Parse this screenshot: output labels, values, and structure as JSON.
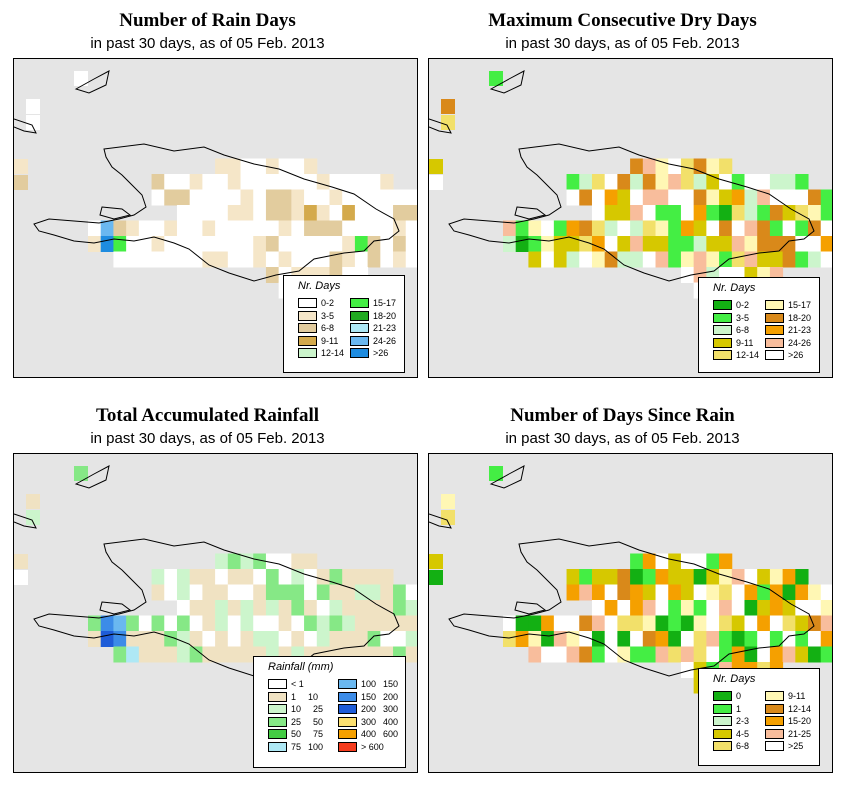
{
  "panels": [
    {
      "title": "Number of Rain Days",
      "subtitle": "in past 30 days, as of  05 Feb. 2013",
      "legend": {
        "title": "Nr. Days",
        "items": [
          {
            "label": "0-2",
            "color": "#ffffff"
          },
          {
            "label": "3-5",
            "color": "#f5e6c8"
          },
          {
            "label": "6-8",
            "color": "#e2cc9e"
          },
          {
            "label": "9-11",
            "color": "#d4aa4c"
          },
          {
            "label": "12-14",
            "color": "#ccf5cc"
          },
          {
            "label": "15-17",
            "color": "#44ee44"
          },
          {
            "label": "18-20",
            "color": "#22aa22"
          },
          {
            "label": "21-23",
            "color": "#aee8f5"
          },
          {
            "label": "24-26",
            "color": "#6ab8f0"
          },
          {
            "label": ">26",
            "color": "#1e8ce0"
          }
        ]
      }
    },
    {
      "title": "Maximum Consecutive Dry Days",
      "subtitle": "in past 30 days, as of  05 Feb. 2013",
      "legend": {
        "title": "Nr. Days",
        "items": [
          {
            "label": "0-2",
            "color": "#13b013"
          },
          {
            "label": "3-5",
            "color": "#44ee44"
          },
          {
            "label": "6-8",
            "color": "#ccf5cc"
          },
          {
            "label": "9-11",
            "color": "#d6c800"
          },
          {
            "label": "12-14",
            "color": "#f2e06a"
          },
          {
            "label": "15-17",
            "color": "#fff7b4"
          },
          {
            "label": "18-20",
            "color": "#d9891a"
          },
          {
            "label": "21-23",
            "color": "#f5a000"
          },
          {
            "label": "24-26",
            "color": "#f8bd9c"
          },
          {
            "label": ">26",
            "color": "#ffffff"
          }
        ]
      }
    },
    {
      "title": "Total Accumulated Rainfall",
      "subtitle": "in past 30 days, as of  05 Feb. 2013",
      "legend": {
        "title": "Rainfall (mm)",
        "items": [
          {
            "label": "< 1",
            "color": "#ffffff"
          },
          {
            "label": "1",
            "label2": "10",
            "color": "#f0e2c2"
          },
          {
            "label": "10",
            "label2": "25",
            "color": "#ccf5cc"
          },
          {
            "label": "25",
            "label2": "50",
            "color": "#86e886"
          },
          {
            "label": "50",
            "label2": "75",
            "color": "#44cc44"
          },
          {
            "label": "75",
            "label2": "100",
            "color": "#aee8f5"
          },
          {
            "label": "100",
            "label2": "150",
            "color": "#6ab8f0"
          },
          {
            "label": "150",
            "label2": "200",
            "color": "#3c8ce8"
          },
          {
            "label": "200",
            "label2": "300",
            "color": "#1e5cd8"
          },
          {
            "label": "300",
            "label2": "400",
            "color": "#fce070"
          },
          {
            "label": "400",
            "label2": "600",
            "color": "#f5a000"
          },
          {
            "label": "> 600",
            "color": "#f53c1e"
          }
        ]
      }
    },
    {
      "title": "Number of Days Since Rain",
      "subtitle": "in past 30 days, as of  05 Feb. 2013",
      "legend": {
        "title": "Nr. Days",
        "items": [
          {
            "label": "0",
            "color": "#13b013"
          },
          {
            "label": "1",
            "color": "#44ee44"
          },
          {
            "label": "2-3",
            "color": "#ccf5cc"
          },
          {
            "label": "4-5",
            "color": "#d6c800"
          },
          {
            "label": "6-8",
            "color": "#f2e06a"
          },
          {
            "label": "9-11",
            "color": "#fff7b4"
          },
          {
            "label": "12-14",
            "color": "#d9891a"
          },
          {
            "label": "15-20",
            "color": "#f5a000"
          },
          {
            "label": "21-25",
            "color": "#f8bd9c"
          },
          {
            "label": ">25",
            "color": "#ffffff"
          }
        ]
      }
    }
  ]
}
